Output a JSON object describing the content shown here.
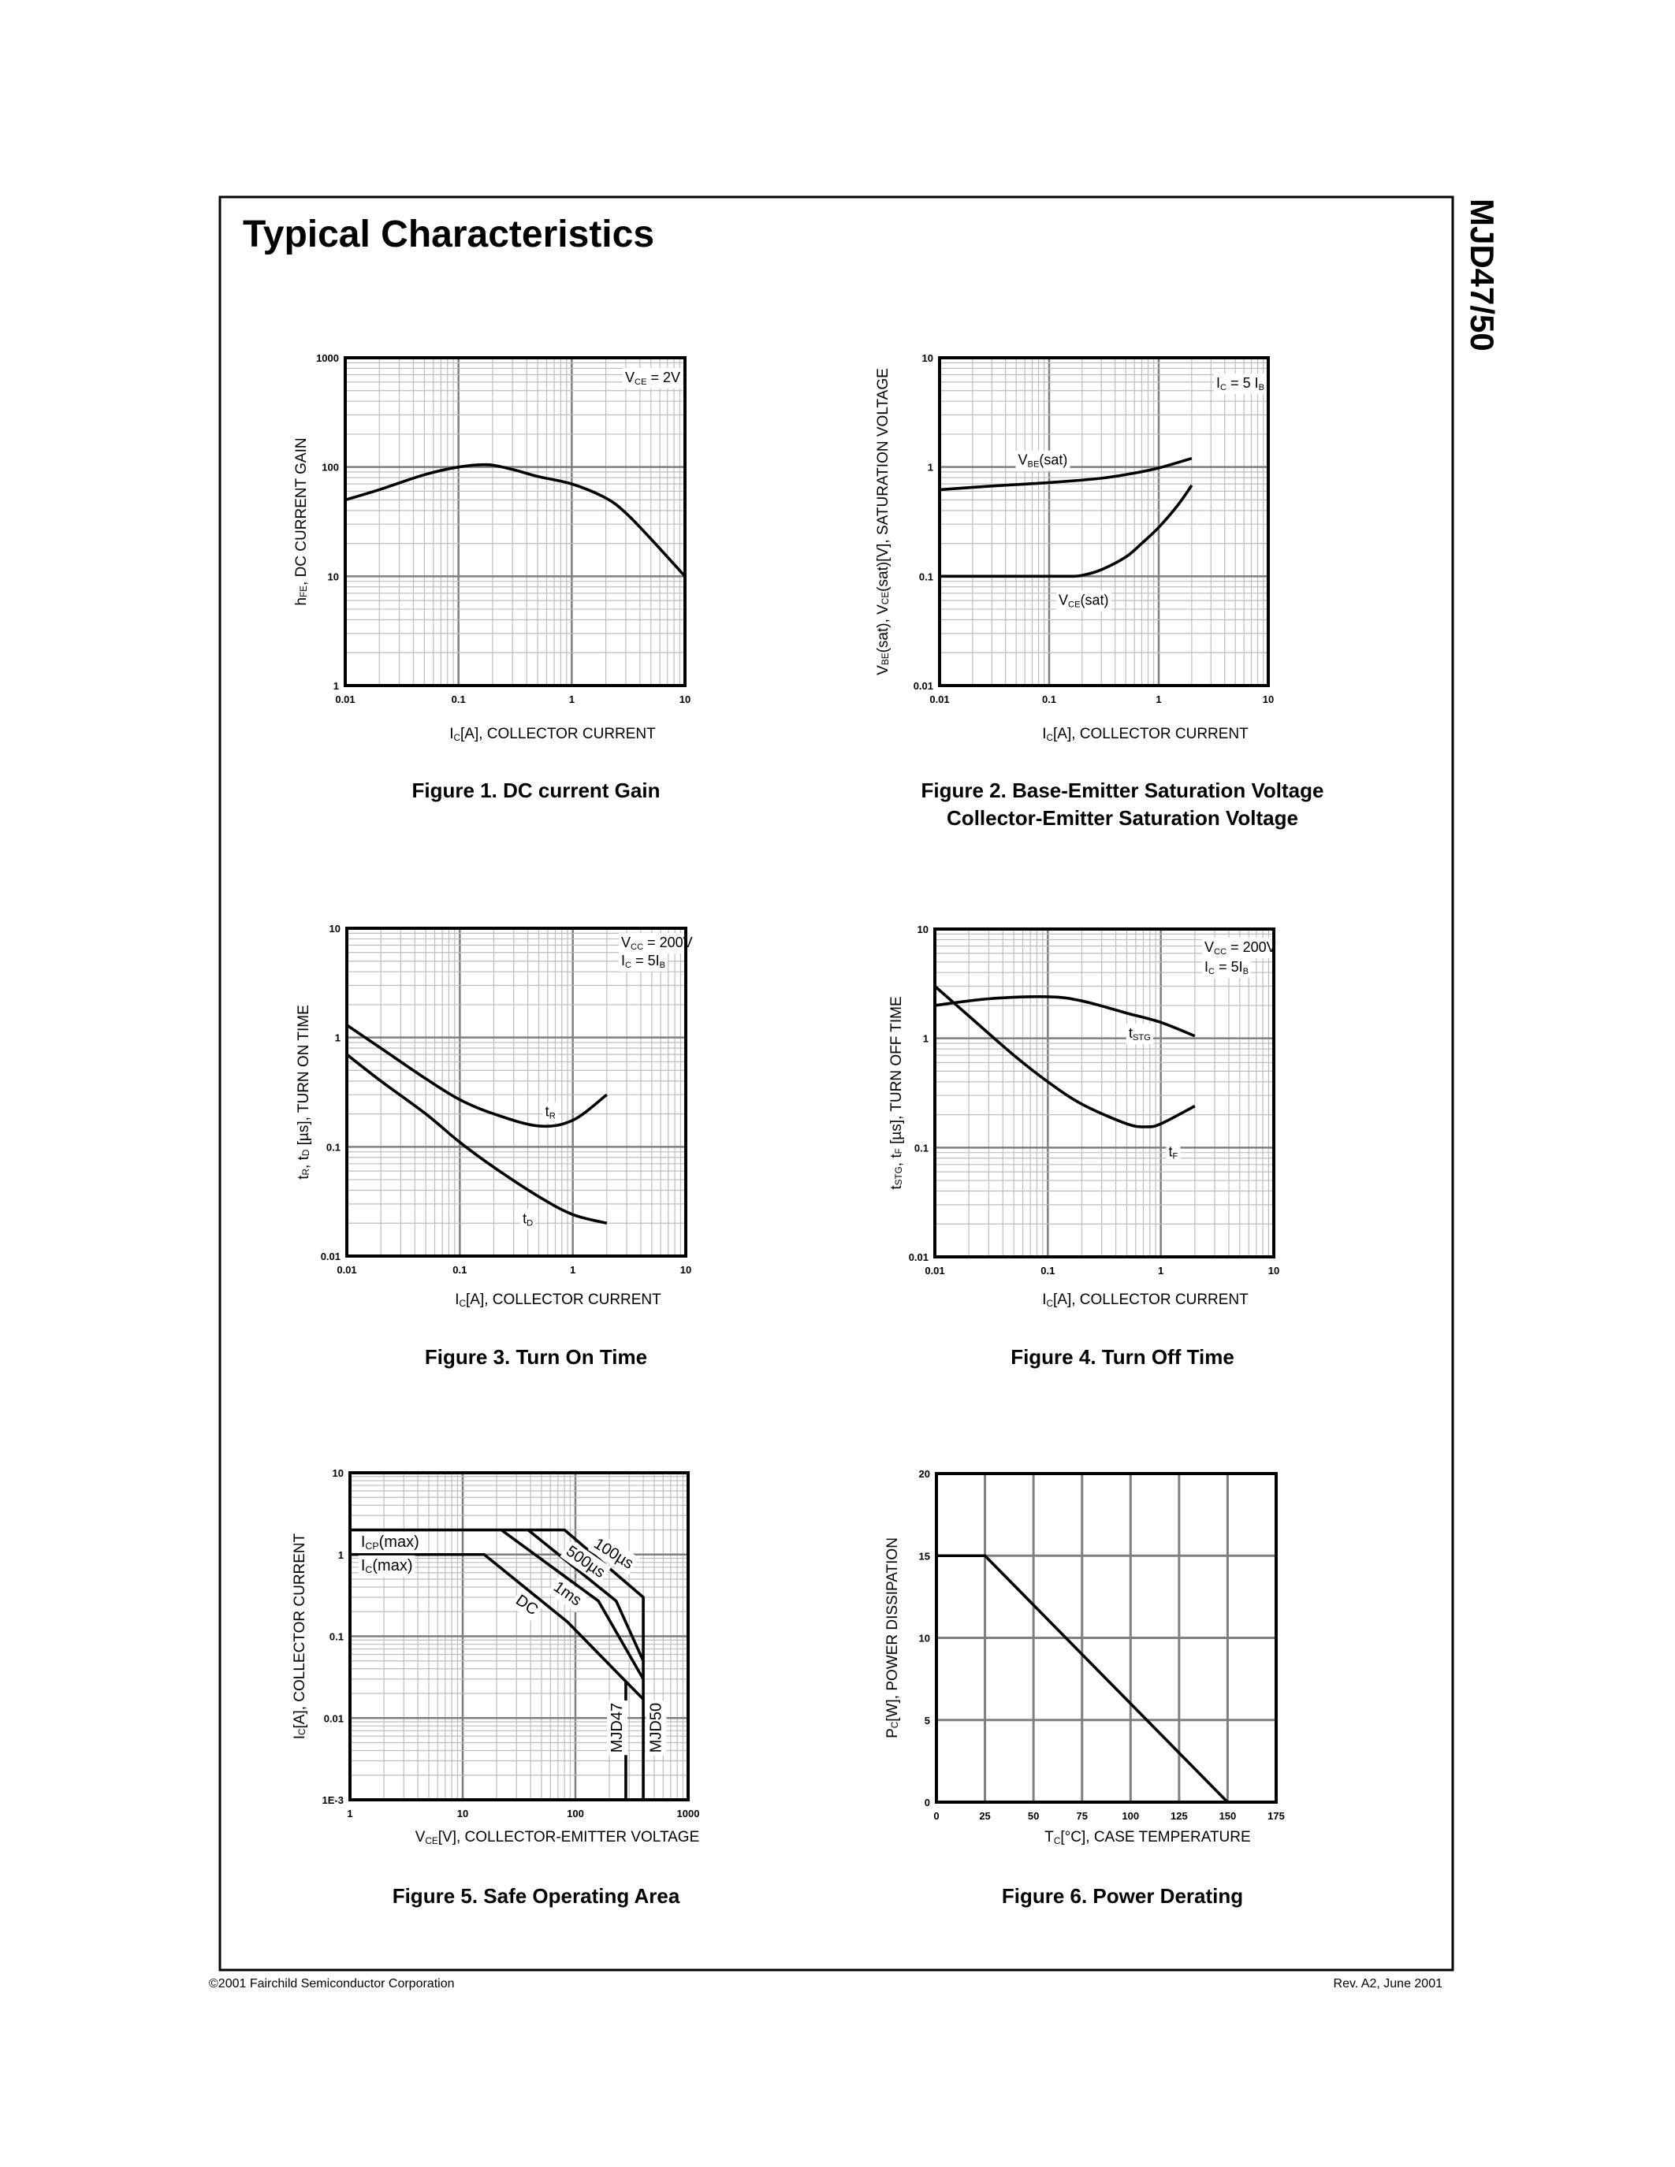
{
  "page": {
    "title": "Typical Characteristics",
    "part_number": "MJD47/50",
    "footer_left": "©2001 Fairchild Semiconductor Corporation",
    "footer_right": "Rev. A2, June 2001"
  },
  "chart_data": [
    {
      "type": "line",
      "title": [
        "Figure 1. DC current Gain"
      ],
      "xlabel": [
        {
          "t": "I"
        },
        {
          "sub": "C"
        },
        {
          "t": "[A], COLLECTOR CURRENT"
        }
      ],
      "ylabel": [
        {
          "t": "h"
        },
        {
          "sub": "FE"
        },
        {
          "t": ", DC CURRENT GAIN"
        }
      ],
      "xscale": "log",
      "yscale": "log",
      "xlim": [
        0.01,
        10
      ],
      "ylim": [
        1,
        1000
      ],
      "xticks": [
        "0.01",
        "0.1",
        "1",
        "10"
      ],
      "yticks": [
        "1",
        "10",
        "100",
        "1000"
      ],
      "grid": true,
      "annotations": [
        {
          "parts": [
            {
              "t": "V"
            },
            {
              "sub": "CE"
            },
            {
              "t": " = 2V"
            }
          ]
        }
      ],
      "series": [
        {
          "x": [
            0.01,
            0.02,
            0.05,
            0.1,
            0.18,
            0.3,
            0.5,
            1,
            2,
            3,
            5,
            10
          ],
          "y": [
            50,
            62,
            85,
            100,
            105,
            95,
            82,
            70,
            52,
            38,
            22,
            10
          ]
        }
      ]
    },
    {
      "type": "line",
      "title": [
        "Figure 2. Base-Emitter Saturation Voltage",
        "Collector-Emitter Saturation Voltage"
      ],
      "xlabel": [
        {
          "t": "I"
        },
        {
          "sub": "C"
        },
        {
          "t": "[A], COLLECTOR CURRENT"
        }
      ],
      "ylabel": [
        {
          "t": "V"
        },
        {
          "sub": "BE"
        },
        {
          "t": "(sat), V"
        },
        {
          "sub": "CE"
        },
        {
          "t": "(sat)[V], SATURATION VOLTAGE"
        }
      ],
      "xscale": "log",
      "yscale": "log",
      "xlim": [
        0.01,
        10
      ],
      "ylim": [
        0.01,
        10
      ],
      "xticks": [
        "0.01",
        "0.1",
        "1",
        "10"
      ],
      "yticks": [
        "0.01",
        "0.1",
        "1",
        "10"
      ],
      "grid": true,
      "annotations": [
        {
          "parts": [
            {
              "t": "I"
            },
            {
              "sub": "C"
            },
            {
              "t": " = 5 I"
            },
            {
              "sub": "B"
            }
          ]
        },
        {
          "parts": [
            {
              "t": "V"
            },
            {
              "sub": "BE"
            },
            {
              "t": "(sat)"
            }
          ]
        },
        {
          "parts": [
            {
              "t": "V"
            },
            {
              "sub": "CE"
            },
            {
              "t": "(sat)"
            }
          ]
        }
      ],
      "series": [
        {
          "name": "VBE(sat)",
          "x": [
            0.01,
            0.03,
            0.1,
            0.3,
            0.6,
            1,
            2
          ],
          "y": [
            0.62,
            0.67,
            0.72,
            0.79,
            0.88,
            0.98,
            1.2
          ]
        },
        {
          "name": "VCE(sat)",
          "x": [
            0.01,
            0.05,
            0.15,
            0.2,
            0.3,
            0.5,
            0.7,
            1,
            1.5,
            2
          ],
          "y": [
            0.1,
            0.1,
            0.1,
            0.102,
            0.115,
            0.15,
            0.2,
            0.28,
            0.45,
            0.68
          ]
        }
      ]
    },
    {
      "type": "line",
      "title": [
        "Figure 3. Turn On Time"
      ],
      "xlabel": [
        {
          "t": "I"
        },
        {
          "sub": "C"
        },
        {
          "t": "[A], COLLECTOR CURRENT"
        }
      ],
      "ylabel": [
        {
          "t": "t"
        },
        {
          "sub": "R"
        },
        {
          "t": ", t"
        },
        {
          "sub": "D"
        },
        {
          "t": " [µs], TURN ON TIME"
        }
      ],
      "xscale": "log",
      "yscale": "log",
      "xlim": [
        0.01,
        10
      ],
      "ylim": [
        0.01,
        10
      ],
      "xticks": [
        "0.01",
        "0.1",
        "1",
        "10"
      ],
      "yticks": [
        "0.01",
        "0.1",
        "1",
        "10"
      ],
      "grid": true,
      "annotations": [
        {
          "parts": [
            {
              "t": "V"
            },
            {
              "sub": "CC"
            },
            {
              "t": " = 200V"
            }
          ]
        },
        {
          "parts": [
            {
              "t": "I"
            },
            {
              "sub": "C"
            },
            {
              "t": " = 5I"
            },
            {
              "sub": "B"
            }
          ]
        },
        {
          "parts": [
            {
              "t": "t"
            },
            {
              "sub": "R"
            }
          ]
        },
        {
          "parts": [
            {
              "t": "t"
            },
            {
              "sub": "D"
            }
          ]
        }
      ],
      "series": [
        {
          "name": "tR",
          "x": [
            0.01,
            0.02,
            0.05,
            0.1,
            0.2,
            0.5,
            1,
            2
          ],
          "y": [
            1.3,
            0.8,
            0.42,
            0.27,
            0.2,
            0.155,
            0.175,
            0.3
          ]
        },
        {
          "name": "tD",
          "x": [
            0.01,
            0.02,
            0.05,
            0.1,
            0.2,
            0.5,
            1,
            2
          ],
          "y": [
            0.7,
            0.4,
            0.2,
            0.11,
            0.065,
            0.035,
            0.024,
            0.02
          ]
        }
      ]
    },
    {
      "type": "line",
      "title": [
        "Figure 4. Turn Off Time"
      ],
      "xlabel": [
        {
          "t": "I"
        },
        {
          "sub": "C"
        },
        {
          "t": "[A], COLLECTOR CURRENT"
        }
      ],
      "ylabel": [
        {
          "t": "t"
        },
        {
          "sub": "STG"
        },
        {
          "t": ", t"
        },
        {
          "sub": "F"
        },
        {
          "t": " [µs], TURN OFF TIME"
        }
      ],
      "xscale": "log",
      "yscale": "log",
      "xlim": [
        0.01,
        10
      ],
      "ylim": [
        0.01,
        10
      ],
      "xticks": [
        "0.01",
        "0.1",
        "1",
        "10"
      ],
      "yticks": [
        "0.01",
        "0.1",
        "1",
        "10"
      ],
      "grid": true,
      "annotations": [
        {
          "parts": [
            {
              "t": "V"
            },
            {
              "sub": "CC"
            },
            {
              "t": " = 200V"
            }
          ]
        },
        {
          "parts": [
            {
              "t": "I"
            },
            {
              "sub": "C"
            },
            {
              "t": " = 5I"
            },
            {
              "sub": "B"
            }
          ]
        },
        {
          "parts": [
            {
              "t": "t"
            },
            {
              "sub": "STG"
            }
          ]
        },
        {
          "parts": [
            {
              "t": "t"
            },
            {
              "sub": "F"
            }
          ]
        }
      ],
      "series": [
        {
          "name": "tSTG",
          "x": [
            0.01,
            0.03,
            0.1,
            0.2,
            0.5,
            1,
            2
          ],
          "y": [
            2.0,
            2.3,
            2.4,
            2.2,
            1.7,
            1.4,
            1.05
          ]
        },
        {
          "name": "tF",
          "x": [
            0.01,
            0.02,
            0.05,
            0.1,
            0.2,
            0.5,
            0.75,
            1,
            2
          ],
          "y": [
            3.0,
            1.6,
            0.7,
            0.4,
            0.25,
            0.165,
            0.155,
            0.165,
            0.24
          ]
        }
      ]
    },
    {
      "type": "line",
      "title": [
        "Figure 5. Safe Operating Area"
      ],
      "xlabel": [
        {
          "t": "V"
        },
        {
          "sub": "CE"
        },
        {
          "t": "[V], COLLECTOR-EMITTER VOLTAGE"
        }
      ],
      "ylabel": [
        {
          "t": "I"
        },
        {
          "sub": "C"
        },
        {
          "t": "[A], COLLECTOR CURRENT"
        }
      ],
      "xscale": "log",
      "yscale": "log",
      "xlim": [
        1,
        1000
      ],
      "ylim": [
        0.001,
        10
      ],
      "xticks": [
        "1",
        "10",
        "100",
        "1000"
      ],
      "yticks": [
        "1E-3",
        "0.01",
        "0.1",
        "1",
        "10"
      ],
      "grid": true,
      "annotations": [
        {
          "parts": [
            {
              "t": "I"
            },
            {
              "sub": "CP"
            },
            {
              "t": "(max)"
            }
          ]
        },
        {
          "parts": [
            {
              "t": "I"
            },
            {
              "sub": "C"
            },
            {
              "t": "(max)"
            }
          ]
        },
        {
          "parts": [
            {
              "t": "100µs"
            }
          ]
        },
        {
          "parts": [
            {
              "t": "500µs"
            }
          ]
        },
        {
          "parts": [
            {
              "t": "1ms"
            }
          ]
        },
        {
          "parts": [
            {
              "t": "DC"
            }
          ]
        },
        {
          "parts": [
            {
              "t": "MJD47"
            }
          ]
        },
        {
          "parts": [
            {
              "t": "MJD50"
            }
          ]
        }
      ],
      "series": [
        {
          "name": "100µs",
          "x": [
            1,
            80,
            400,
            400
          ],
          "y": [
            2,
            2,
            0.3,
            0.001
          ]
        },
        {
          "name": "500µs",
          "x": [
            38,
            230,
            400
          ],
          "y": [
            2,
            0.27,
            0.05
          ]
        },
        {
          "name": "1ms",
          "x": [
            22,
            160,
            400
          ],
          "y": [
            2,
            0.27,
            0.03
          ]
        },
        {
          "name": "DC",
          "x": [
            1,
            15.5,
            85,
            280,
            400
          ],
          "y": [
            1,
            1,
            0.15,
            0.028,
            0.017
          ]
        },
        {
          "name": "MJD47",
          "x": [
            280,
            280
          ],
          "y": [
            0.028,
            0.001
          ]
        }
      ]
    },
    {
      "type": "line",
      "title": [
        "Figure 6. Power Derating"
      ],
      "xlabel": [
        {
          "t": "T"
        },
        {
          "sub": "C"
        },
        {
          "t": "[°C], CASE TEMPERATURE"
        }
      ],
      "ylabel": [
        {
          "t": "P"
        },
        {
          "sub": "C"
        },
        {
          "t": "[W], POWER DISSIPATION"
        }
      ],
      "xscale": "linear",
      "yscale": "linear",
      "xlim": [
        0,
        175
      ],
      "ylim": [
        0,
        20
      ],
      "xticks": [
        "0",
        "25",
        "50",
        "75",
        "100",
        "125",
        "150",
        "175"
      ],
      "yticks": [
        "0",
        "5",
        "10",
        "15",
        "20"
      ],
      "grid": true,
      "annotations": [],
      "series": [
        {
          "x": [
            0,
            25,
            150
          ],
          "y": [
            15,
            15,
            0
          ]
        }
      ]
    }
  ]
}
